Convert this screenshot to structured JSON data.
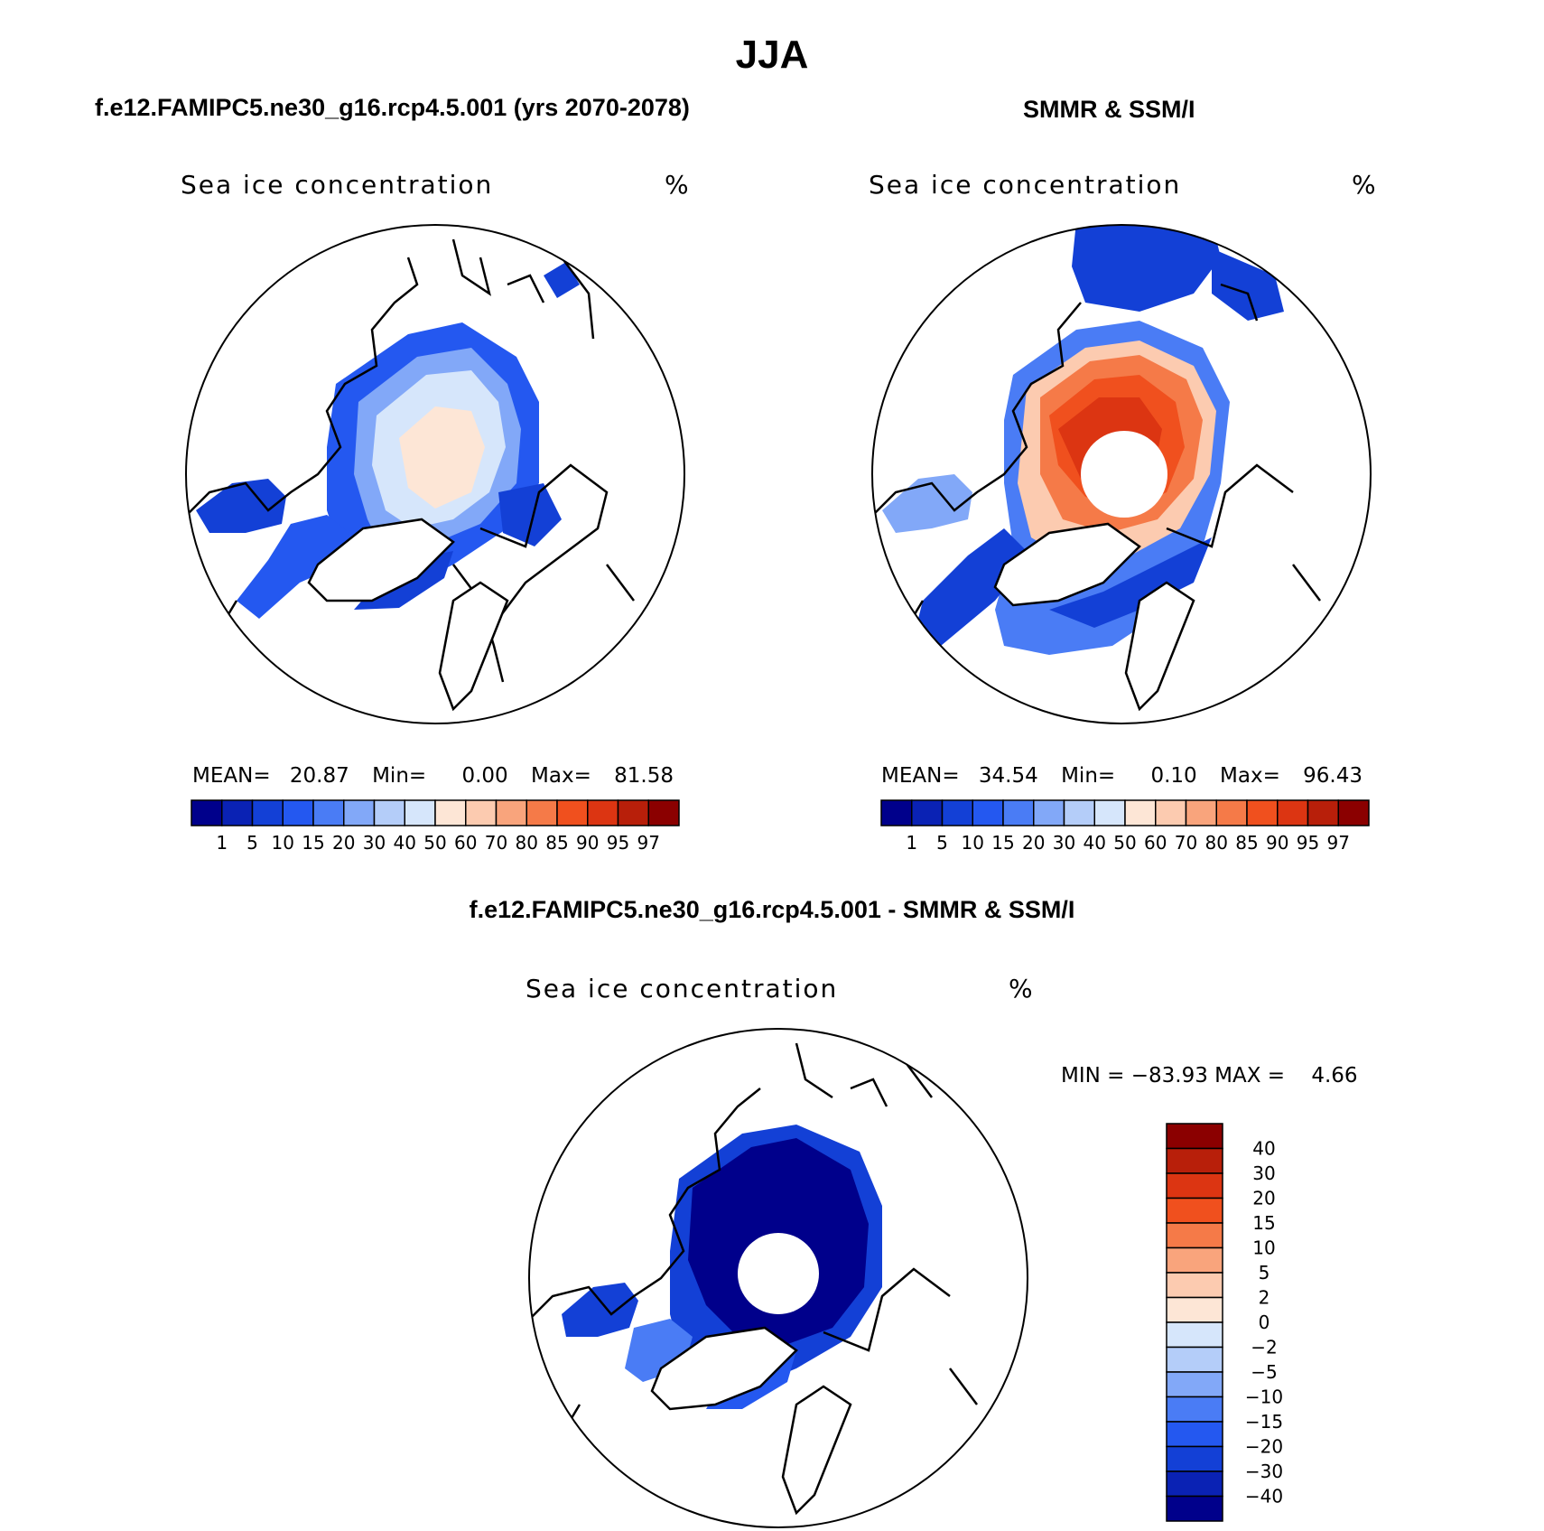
{
  "season": "JJA",
  "panels": [
    {
      "header": "f.e12.FAMIPC5.ne30_g16.rcp4.5.001 (yrs 2070-2078)",
      "variable": "Sea ice concentration",
      "units": "%",
      "stats": {
        "mean_label": "MEAN=",
        "mean": "20.87",
        "min_label": "Min=",
        "min": "0.00",
        "max_label": "Max=",
        "max": "81.58"
      }
    },
    {
      "header": "SMMR & SSM/I",
      "variable": "Sea ice concentration",
      "units": "%",
      "stats": {
        "mean_label": "MEAN=",
        "mean": "34.54",
        "min_label": "Min=",
        "min": "0.10",
        "max_label": "Max=",
        "max": "96.43"
      }
    },
    {
      "header": "f.e12.FAMIPC5.ne30_g16.rcp4.5.001 - SMMR & SSM/I",
      "variable": "Sea ice concentration",
      "units": "%",
      "stats": {
        "minmax_text": "MIN = −83.93 MAX =    4.66"
      }
    }
  ],
  "concentration_colorbar": {
    "colors": [
      "#00008b",
      "#0a22b4",
      "#1340d6",
      "#2458f0",
      "#4a7cf5",
      "#82a8f8",
      "#b4cdf9",
      "#d6e6fb",
      "#fde6d6",
      "#fccbb0",
      "#f9a47c",
      "#f57a48",
      "#f0501e",
      "#dc3512",
      "#b81f0a",
      "#8b0000"
    ],
    "labels": [
      "1",
      "5",
      "10",
      "15",
      "20",
      "30",
      "40",
      "50",
      "60",
      "70",
      "80",
      "85",
      "90",
      "95",
      "97"
    ]
  },
  "difference_colorbar": {
    "colors": [
      "#00008b",
      "#0a22b4",
      "#1340d6",
      "#2458f0",
      "#4a7cf5",
      "#82a8f8",
      "#b4cdf9",
      "#d6e6fb",
      "#fde6d6",
      "#fccbb0",
      "#f9a47c",
      "#f57a48",
      "#f0501e",
      "#dc3512",
      "#b81f0a",
      "#8b0000"
    ],
    "labels": [
      "40",
      "30",
      "20",
      "15",
      "10",
      "5",
      "2",
      "0",
      "−2",
      "−5",
      "−10",
      "−15",
      "−20",
      "−30",
      "−40"
    ]
  }
}
